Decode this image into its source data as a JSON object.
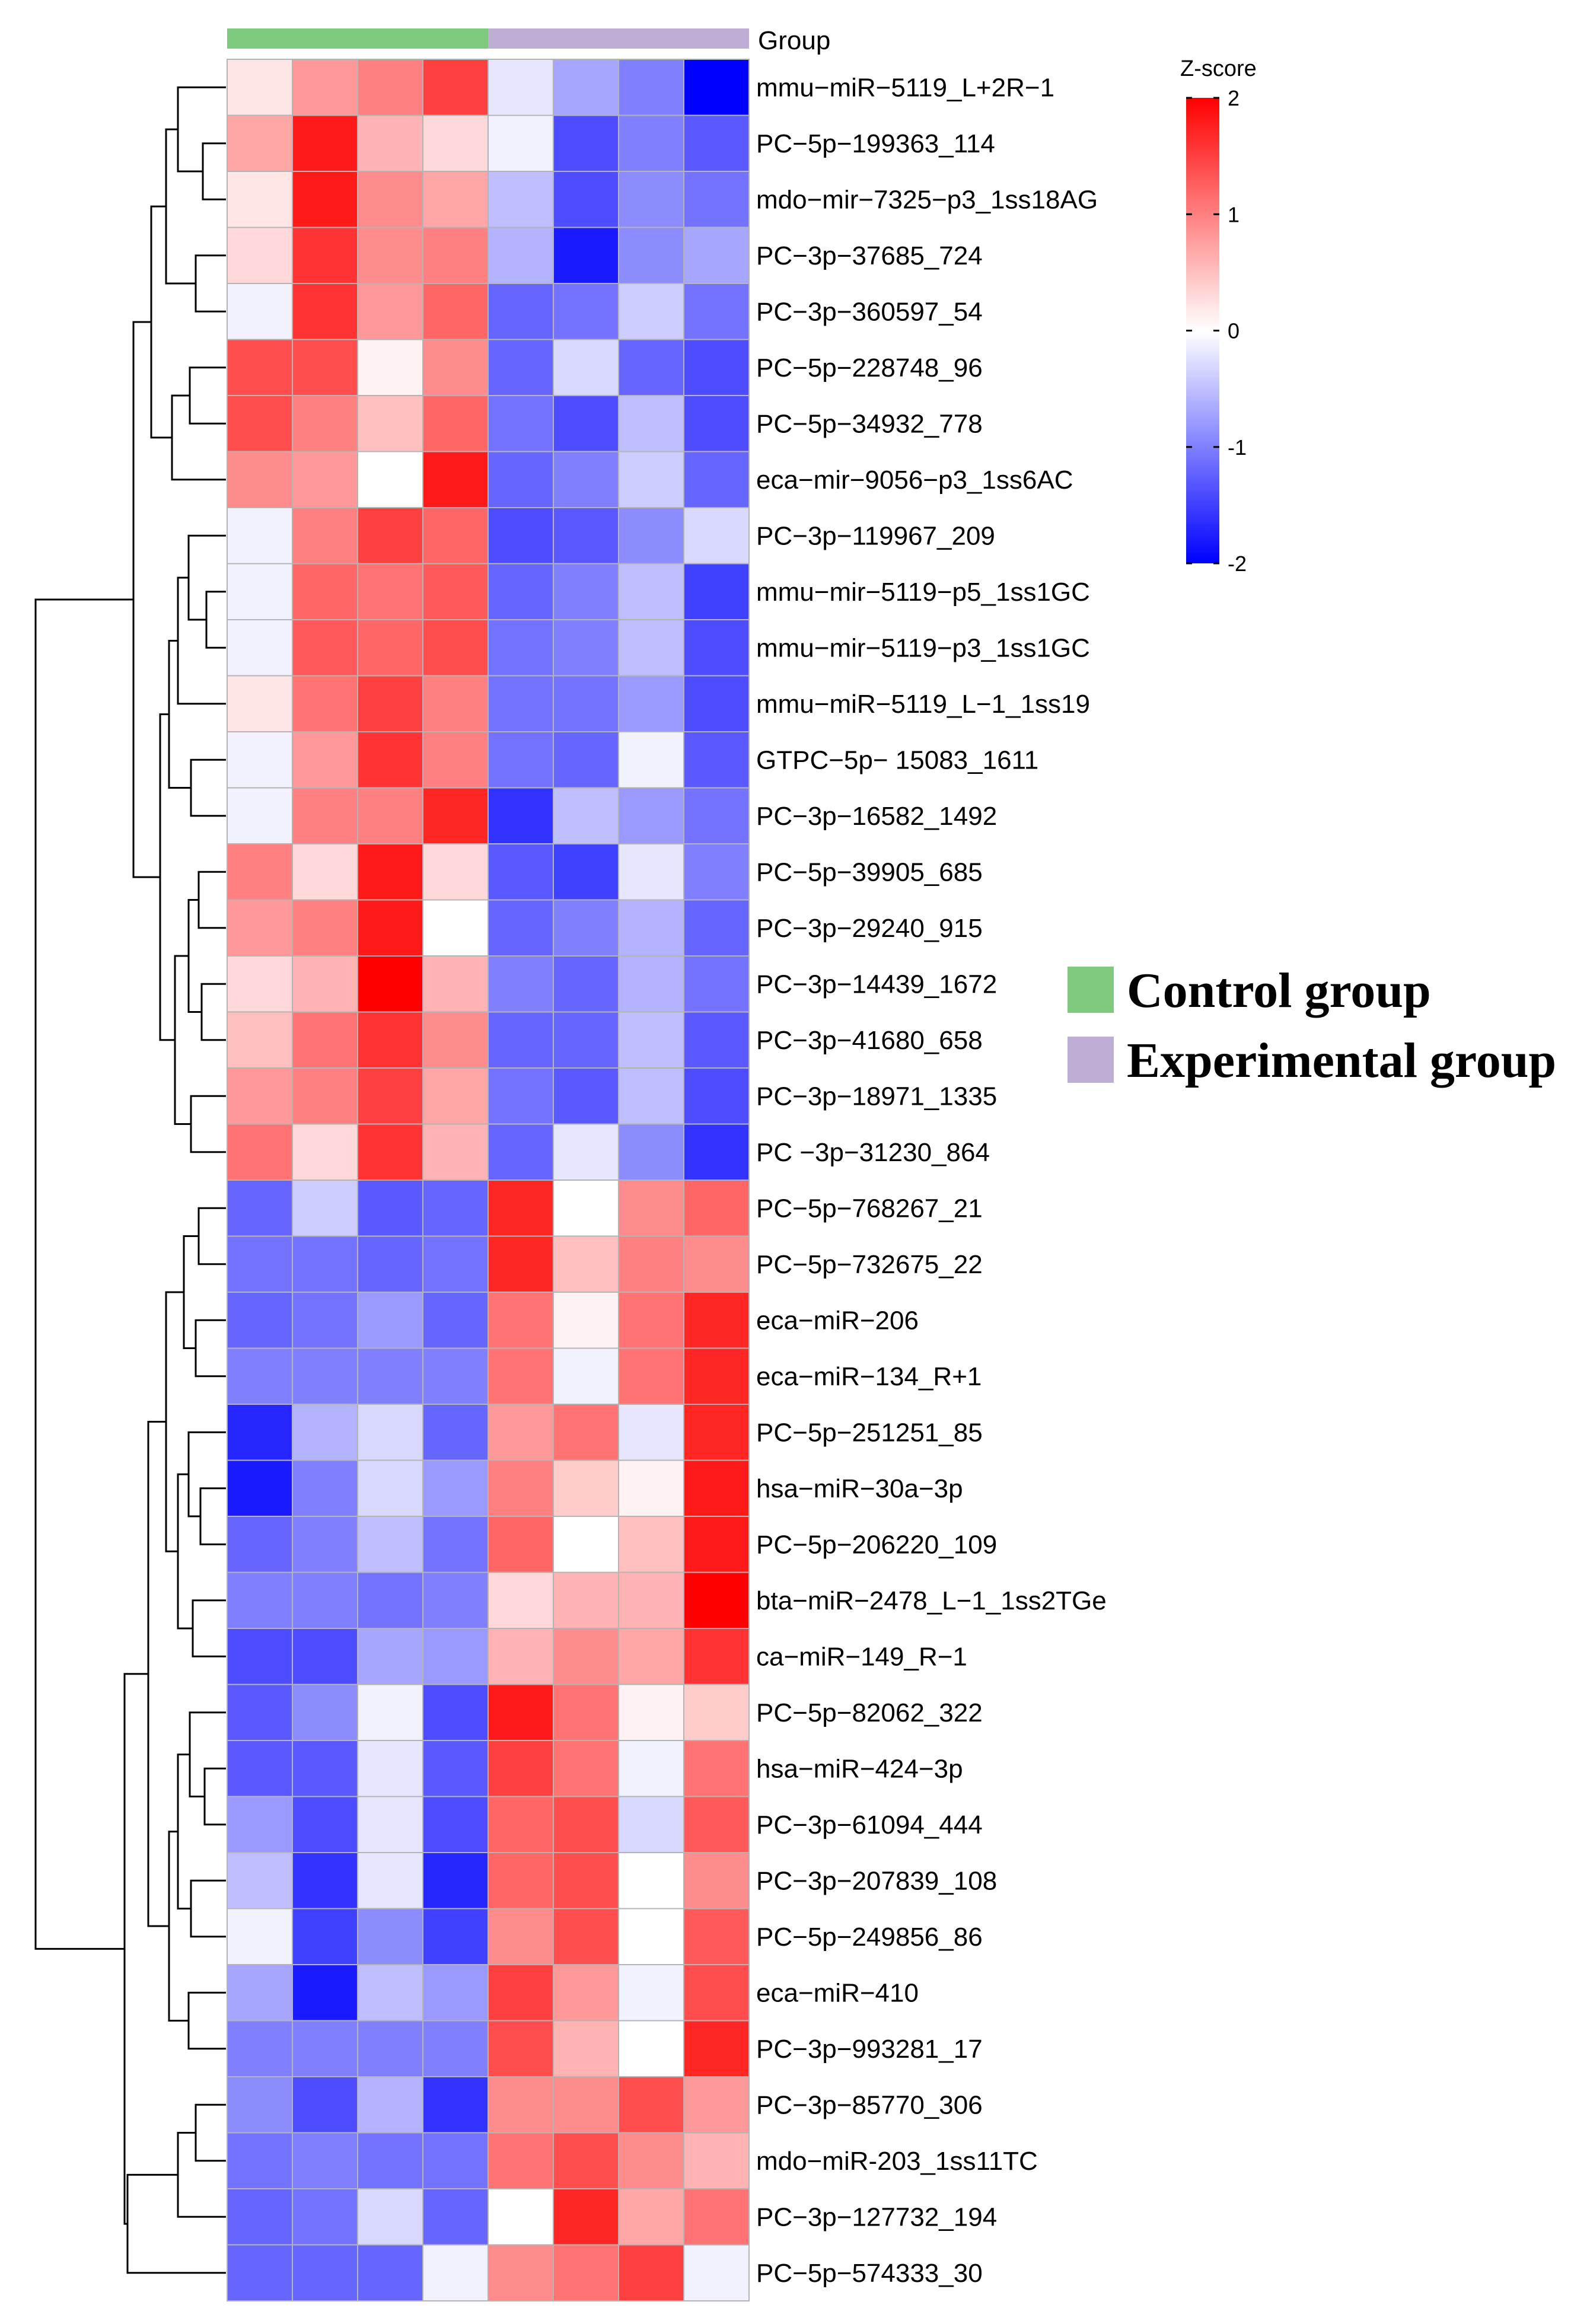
{
  "chart_data": {
    "type": "heatmap",
    "title": "",
    "group_annotation_title": "Group",
    "colorbar": {
      "title": "Z-score",
      "ticks": [
        2,
        1,
        0,
        -1,
        -2
      ],
      "range": [
        -2,
        2
      ],
      "low_color": "#0000ff",
      "mid_color": "#ffffff",
      "high_color": "#ff0000"
    },
    "groups": [
      {
        "name": "Control group",
        "color": "#7fc97f",
        "columns": 4
      },
      {
        "name": "Experimental group",
        "color": "#beaed4",
        "columns": 4
      }
    ],
    "row_labels": [
      "mmu−miR−5119_L+2R−1",
      "PC−5p−199363_114",
      "mdo−mir−7325−p3_1ss18AG",
      "PC−3p−37685_724",
      "PC−3p−360597_54",
      "PC−5p−228748_96",
      "PC−5p−34932_778",
      "eca−mir−9056−p3_1ss6AC",
      "PC−3p−119967_209",
      "mmu−mir−5119−p5_1ss1GC",
      "mmu−mir−5119−p3_1ss1GC",
      "mmu−miR−5119_L−1_1ss19",
      "GTPC−5p−  15083_1611",
      "PC−3p−16582_1492",
      "PC−5p−39905_685",
      "PC−3p−29240_915",
      "PC−3p−14439_1672",
      "PC−3p−41680_658",
      "PC−3p−18971_1335",
      "PC  −3p−31230_864",
      "PC−5p−768267_21",
      "PC−5p−732675_22",
      "eca−miR−206",
      "eca−miR−134_R+1",
      "PC−5p−251251_85",
      "hsa−miR−30a−3p",
      "PC−5p−206220_109",
      "bta−miR−2478_L−1_1ss2TGe",
      "ca−miR−149_R−1",
      "PC−5p−82062_322",
      "hsa−miR−424−3p",
      "PC−3p−61094_444",
      "PC−3p−207839_108",
      "PC−5p−249856_86",
      "eca−miR−410",
      "PC−3p−993281_17",
      "PC−3p−85770_306",
      "mdo−miR-203_1ss11TC",
      "PC−3p−127732_194",
      "PC−5p−574333_30"
    ],
    "values": [
      [
        0.2,
        0.8,
        1.0,
        1.5,
        -0.2,
        -0.7,
        -1.0,
        -2.0
      ],
      [
        0.7,
        1.8,
        0.6,
        0.3,
        -0.1,
        -1.4,
        -1.0,
        -1.3
      ],
      [
        0.2,
        1.8,
        0.9,
        0.7,
        -0.5,
        -1.4,
        -0.9,
        -1.1
      ],
      [
        0.3,
        1.6,
        0.9,
        1.0,
        -0.6,
        -1.8,
        -0.9,
        -0.7
      ],
      [
        -0.1,
        1.6,
        0.8,
        1.2,
        -1.2,
        -1.1,
        -0.4,
        -1.1
      ],
      [
        1.4,
        1.4,
        0.1,
        0.9,
        -1.2,
        -0.3,
        -1.2,
        -1.4
      ],
      [
        1.4,
        1.0,
        0.5,
        1.2,
        -1.1,
        -1.4,
        -0.5,
        -1.4
      ],
      [
        0.9,
        0.8,
        0.0,
        1.8,
        -1.2,
        -1.0,
        -0.4,
        -1.2
      ],
      [
        -0.1,
        1.0,
        1.5,
        1.2,
        -1.4,
        -1.3,
        -0.9,
        -0.3
      ],
      [
        -0.1,
        1.2,
        1.1,
        1.3,
        -1.2,
        -1.0,
        -0.5,
        -1.5
      ],
      [
        -0.1,
        1.3,
        1.2,
        1.4,
        -1.1,
        -1.0,
        -0.5,
        -1.4
      ],
      [
        0.2,
        1.1,
        1.5,
        1.0,
        -1.1,
        -1.1,
        -0.8,
        -1.4
      ],
      [
        -0.1,
        0.8,
        1.6,
        1.0,
        -1.1,
        -1.2,
        -0.1,
        -1.3
      ],
      [
        -0.1,
        1.0,
        1.0,
        1.7,
        -1.6,
        -0.5,
        -0.8,
        -1.1
      ],
      [
        1.0,
        0.3,
        1.8,
        0.3,
        -1.3,
        -1.5,
        -0.2,
        -1.0
      ],
      [
        0.8,
        1.0,
        1.8,
        0.0,
        -1.2,
        -1.0,
        -0.6,
        -1.2
      ],
      [
        0.3,
        0.6,
        2.0,
        0.6,
        -1.0,
        -1.2,
        -0.6,
        -1.1
      ],
      [
        0.5,
        1.1,
        1.6,
        0.9,
        -1.2,
        -1.2,
        -0.5,
        -1.3
      ],
      [
        0.8,
        1.0,
        1.5,
        0.7,
        -1.1,
        -1.3,
        -0.5,
        -1.4
      ],
      [
        1.1,
        0.3,
        1.6,
        0.6,
        -1.2,
        -0.2,
        -0.9,
        -1.6
      ],
      [
        -1.2,
        -0.4,
        -1.3,
        -1.2,
        1.7,
        0.0,
        0.9,
        1.2
      ],
      [
        -1.1,
        -1.1,
        -1.2,
        -1.1,
        1.7,
        0.5,
        1.0,
        0.9
      ],
      [
        -1.2,
        -1.1,
        -0.8,
        -1.2,
        1.1,
        0.1,
        1.1,
        1.7
      ],
      [
        -1.0,
        -1.0,
        -1.0,
        -1.0,
        1.1,
        -0.1,
        1.1,
        1.7
      ],
      [
        -1.7,
        -0.6,
        -0.3,
        -1.2,
        0.8,
        1.1,
        -0.2,
        1.7
      ],
      [
        -1.8,
        -1.0,
        -0.3,
        -0.8,
        1.0,
        0.4,
        0.1,
        1.8
      ],
      [
        -1.2,
        -1.0,
        -0.5,
        -1.1,
        1.2,
        0.0,
        0.5,
        1.8
      ],
      [
        -1.0,
        -1.0,
        -1.1,
        -1.0,
        0.3,
        0.6,
        0.6,
        2.0
      ],
      [
        -1.4,
        -1.4,
        -0.7,
        -0.8,
        0.6,
        0.9,
        0.7,
        1.6
      ],
      [
        -1.3,
        -0.9,
        -0.1,
        -1.4,
        1.8,
        1.1,
        0.1,
        0.4
      ],
      [
        -1.3,
        -1.3,
        -0.2,
        -1.3,
        1.5,
        1.1,
        -0.1,
        1.1
      ],
      [
        -0.8,
        -1.4,
        -0.2,
        -1.4,
        1.2,
        1.4,
        -0.3,
        1.3
      ],
      [
        -0.5,
        -1.6,
        -0.2,
        -1.7,
        1.2,
        1.4,
        0.0,
        0.9
      ],
      [
        -0.1,
        -1.5,
        -0.9,
        -1.5,
        0.9,
        1.4,
        0.0,
        1.3
      ],
      [
        -0.7,
        -1.8,
        -0.5,
        -0.8,
        1.5,
        0.8,
        -0.1,
        1.4
      ],
      [
        -1.0,
        -1.0,
        -1.0,
        -1.0,
        1.4,
        0.6,
        0.0,
        1.7
      ],
      [
        -0.9,
        -1.4,
        -0.6,
        -1.6,
        0.9,
        0.9,
        1.4,
        0.8
      ],
      [
        -1.1,
        -1.0,
        -1.1,
        -1.1,
        1.1,
        1.4,
        0.9,
        0.6
      ],
      [
        -1.2,
        -1.1,
        -0.3,
        -1.2,
        0.0,
        1.7,
        0.7,
        1.1
      ],
      [
        -1.2,
        -1.2,
        -1.2,
        -0.1,
        0.9,
        1.1,
        1.5,
        -0.1
      ]
    ]
  }
}
